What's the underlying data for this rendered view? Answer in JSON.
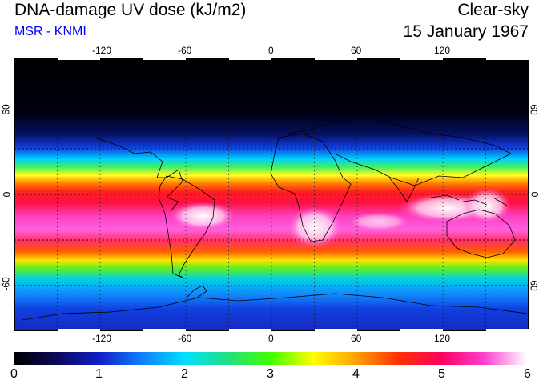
{
  "title": "DNA-damage UV dose (kJ/m2)",
  "subtitle": "MSR - KNMI",
  "condition": "Clear-sky",
  "date": "15 January 1967",
  "colors": {
    "subtitle": "#0000ff",
    "scale": [
      "#000000",
      "#0a0a5a",
      "#1020c8",
      "#1080ff",
      "#00e0ff",
      "#20e080",
      "#40ff00",
      "#ffff00",
      "#ffa000",
      "#ff3000",
      "#ff0060",
      "#ff40d0",
      "#ffffff"
    ]
  },
  "map": {
    "lon_ticks": [
      "-120",
      "-60",
      "0",
      "60",
      "120"
    ],
    "lat_ticks": [
      "60",
      "0",
      "-60"
    ],
    "grid_lons": [
      -150,
      -120,
      -90,
      -60,
      -30,
      0,
      30,
      60,
      90,
      120,
      150
    ],
    "grid_lats": [
      60,
      30,
      0,
      -30,
      -60
    ]
  },
  "colorbar": {
    "labels": [
      "0",
      "1",
      "2",
      "3",
      "4",
      "5",
      "6"
    ],
    "min": 0,
    "max": 6
  }
}
